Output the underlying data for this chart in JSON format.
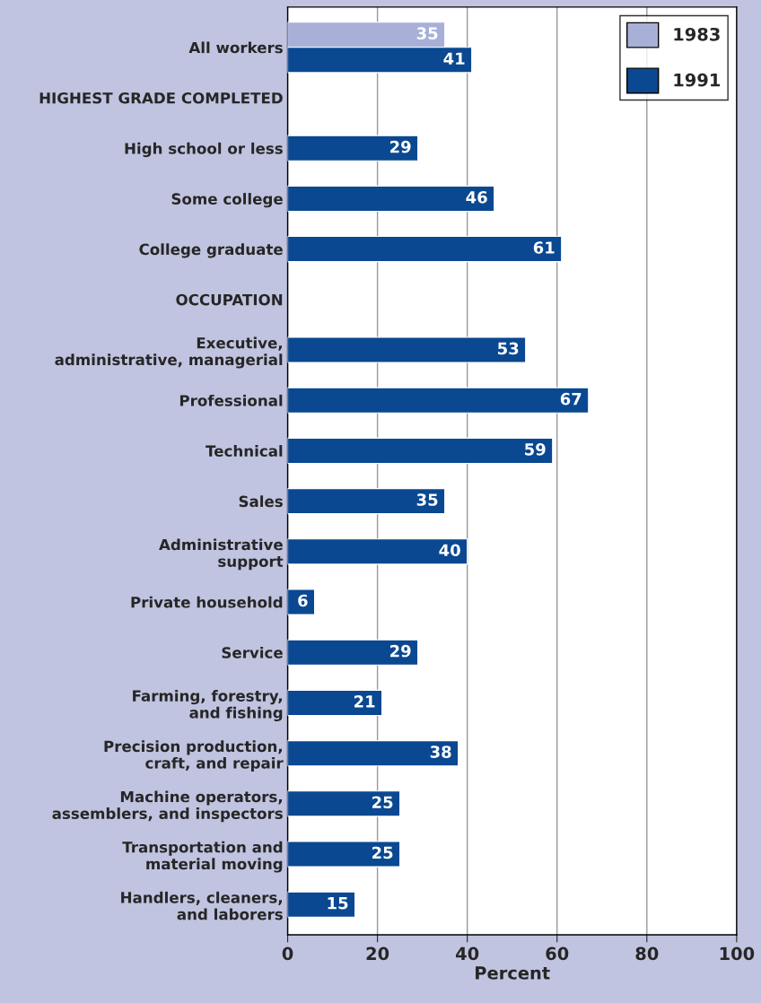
{
  "chart_data": {
    "type": "bar",
    "orientation": "horizontal",
    "xlabel": "Percent",
    "categories": [
      "All workers",
      "HIGHEST GRADE COMPLETED",
      "High school or less",
      "Some college",
      "College graduate",
      "OCCUPATION",
      "Executive,\nadministrative, managerial",
      "Professional",
      "Technical",
      "Sales",
      "Administrative\nsupport",
      "Private household",
      "Service",
      "Farming, forestry,\nand fishing",
      "Precision production,\ncraft, and repair",
      "Machine operators,\nassemblers, and inspectors",
      "Transportation and\nmaterial moving",
      "Handlers, cleaners,\nand laborers"
    ],
    "series": [
      {
        "name": "1983",
        "color": "#a8b0d8",
        "values": [
          35,
          null,
          null,
          null,
          null,
          null,
          null,
          null,
          null,
          null,
          null,
          null,
          null,
          null,
          null,
          null,
          null,
          null
        ]
      },
      {
        "name": "1991",
        "color": "#0a4891",
        "values": [
          41,
          null,
          29,
          46,
          61,
          null,
          53,
          67,
          59,
          35,
          40,
          6,
          29,
          21,
          38,
          25,
          25,
          15
        ]
      }
    ],
    "xlim": [
      0,
      100
    ],
    "xticks": [
      0,
      20,
      40,
      60,
      80,
      100
    ],
    "grid": "x",
    "legend": "top right",
    "data_labels": true
  }
}
